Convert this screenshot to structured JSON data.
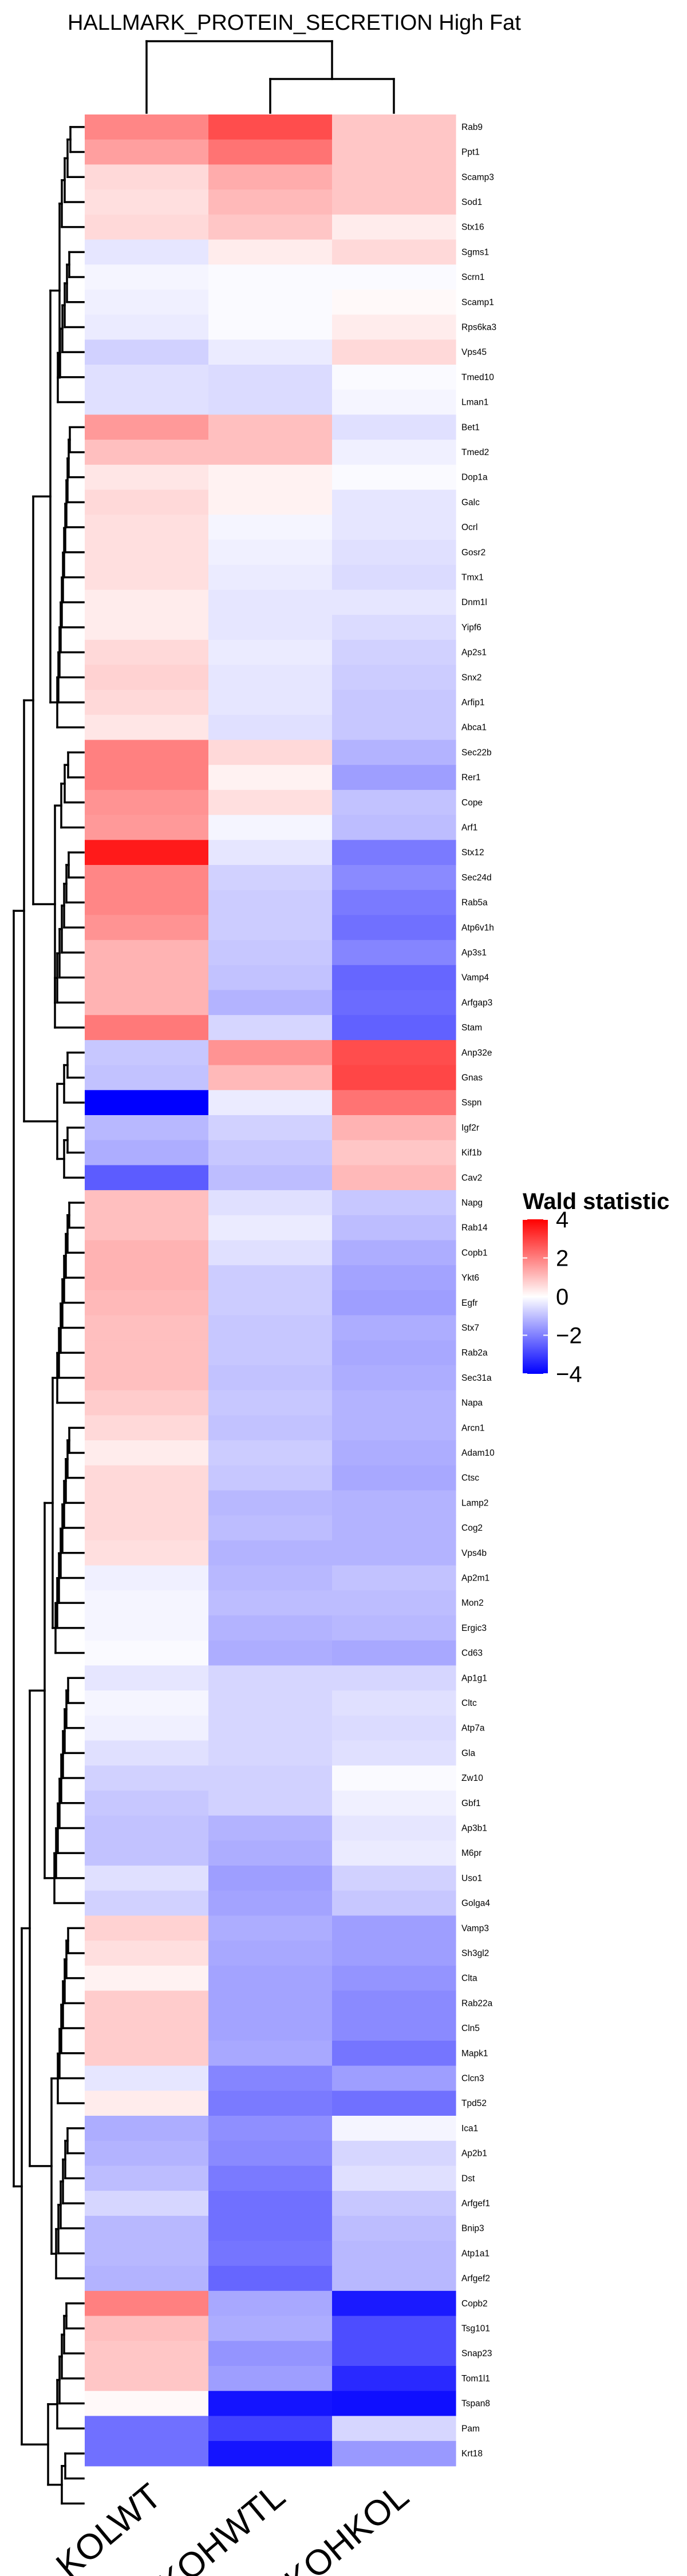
{
  "chart_data": {
    "type": "heatmap",
    "title": "HALLMARK_PROTEIN_SECRETION High Fat",
    "columns": [
      "KOLWT",
      "KOHWTL",
      "KOHKOL"
    ],
    "rows": [
      "Rab9",
      "Ppt1",
      "Scamp3",
      "Sod1",
      "Stx16",
      "Sgms1",
      "Scrn1",
      "Scamp1",
      "Rps6ka3",
      "Vps45",
      "Tmed10",
      "Lman1",
      "Bet1",
      "Tmed2",
      "Dop1a",
      "Galc",
      "Ocrl",
      "Gosr2",
      "Tmx1",
      "Dnm1l",
      "Yipf6",
      "Ap2s1",
      "Snx2",
      "Arfip1",
      "Abca1",
      "Sec22b",
      "Rer1",
      "Cope",
      "Arf1",
      "Stx12",
      "Sec24d",
      "Rab5a",
      "Atp6v1h",
      "Ap3s1",
      "Vamp4",
      "Arfgap3",
      "Stam",
      "Anp32e",
      "Gnas",
      "Sspn",
      "Igf2r",
      "Kif1b",
      "Cav2",
      "Napg",
      "Rab14",
      "Copb1",
      "Ykt6",
      "Egfr",
      "Stx7",
      "Rab2a",
      "Sec31a",
      "Napa",
      "Arcn1",
      "Adam10",
      "Ctsc",
      "Lamp2",
      "Cog2",
      "Vps4b",
      "Ap2m1",
      "Mon2",
      "Ergic3",
      "Cd63",
      "Ap1g1",
      "Cltc",
      "Atp7a",
      "Gla",
      "Zw10",
      "Gbf1",
      "Ap3b1",
      "M6pr",
      "Uso1",
      "Golga4",
      "Vamp3",
      "Sh3gl2",
      "Clta",
      "Rab22a",
      "Cln5",
      "Mapk1",
      "Clcn3",
      "Tpd52",
      "Ica1",
      "Ap2b1",
      "Dst",
      "Arfgef1",
      "Bnip3",
      "Atp1a1",
      "Arfgef2",
      "Copb2",
      "Tsg101",
      "Snap23",
      "Tom1l1",
      "Tspan8",
      "Pam",
      "Krt18"
    ],
    "values": [
      [
        1.9,
        2.8,
        0.9
      ],
      [
        1.5,
        2.2,
        0.9
      ],
      [
        0.6,
        1.3,
        0.9
      ],
      [
        0.5,
        1.1,
        0.9
      ],
      [
        0.6,
        0.9,
        0.3
      ],
      [
        -0.5,
        0.3,
        0.6
      ],
      [
        -0.2,
        -0.1,
        -0.1
      ],
      [
        -0.3,
        -0.1,
        0.1
      ],
      [
        -0.4,
        -0.1,
        0.3
      ],
      [
        -0.9,
        -0.4,
        0.6
      ],
      [
        -0.6,
        -0.7,
        -0.1
      ],
      [
        -0.6,
        -0.7,
        -0.2
      ],
      [
        1.6,
        1.0,
        -0.6
      ],
      [
        1.0,
        1.0,
        -0.3
      ],
      [
        0.4,
        0.2,
        -0.1
      ],
      [
        0.6,
        0.2,
        -0.5
      ],
      [
        0.5,
        -0.2,
        -0.5
      ],
      [
        0.5,
        -0.3,
        -0.6
      ],
      [
        0.5,
        -0.4,
        -0.7
      ],
      [
        0.3,
        -0.5,
        -0.5
      ],
      [
        0.3,
        -0.5,
        -0.7
      ],
      [
        0.6,
        -0.4,
        -0.9
      ],
      [
        0.7,
        -0.5,
        -1.0
      ],
      [
        0.6,
        -0.5,
        -1.1
      ],
      [
        0.4,
        -0.6,
        -1.1
      ],
      [
        2.0,
        0.6,
        -1.5
      ],
      [
        2.0,
        0.2,
        -1.9
      ],
      [
        1.7,
        0.5,
        -1.2
      ],
      [
        1.6,
        -0.2,
        -1.3
      ],
      [
        3.6,
        -0.5,
        -2.6
      ],
      [
        1.9,
        -0.9,
        -2.3
      ],
      [
        1.9,
        -1.0,
        -2.6
      ],
      [
        1.7,
        -1.0,
        -2.8
      ],
      [
        1.2,
        -1.1,
        -2.4
      ],
      [
        1.2,
        -1.2,
        -3.0
      ],
      [
        1.2,
        -1.5,
        -2.9
      ],
      [
        2.1,
        -0.8,
        -3.1
      ],
      [
        -1.1,
        1.7,
        2.8
      ],
      [
        -1.2,
        1.1,
        2.9
      ],
      [
        -5.0,
        -0.4,
        2.2
      ],
      [
        -1.4,
        -0.9,
        1.2
      ],
      [
        -1.6,
        -1.1,
        0.9
      ],
      [
        -3.2,
        -1.3,
        1.1
      ],
      [
        1.0,
        -0.6,
        -1.1
      ],
      [
        1.0,
        -0.4,
        -1.3
      ],
      [
        1.2,
        -0.6,
        -1.6
      ],
      [
        1.2,
        -1.0,
        -1.8
      ],
      [
        1.1,
        -1.0,
        -1.9
      ],
      [
        1.0,
        -1.1,
        -1.6
      ],
      [
        1.0,
        -1.1,
        -1.7
      ],
      [
        1.0,
        -1.2,
        -1.6
      ],
      [
        0.8,
        -1.1,
        -1.5
      ],
      [
        0.6,
        -1.2,
        -1.5
      ],
      [
        0.3,
        -1.0,
        -1.6
      ],
      [
        0.6,
        -1.1,
        -1.7
      ],
      [
        0.6,
        -1.4,
        -1.5
      ],
      [
        0.6,
        -1.3,
        -1.5
      ],
      [
        0.5,
        -1.5,
        -1.5
      ],
      [
        -0.3,
        -1.4,
        -1.2
      ],
      [
        -0.2,
        -1.3,
        -1.3
      ],
      [
        -0.2,
        -1.5,
        -1.4
      ],
      [
        -0.1,
        -1.6,
        -1.7
      ],
      [
        -0.5,
        -0.8,
        -0.8
      ],
      [
        -0.2,
        -0.8,
        -0.6
      ],
      [
        -0.3,
        -0.8,
        -0.7
      ],
      [
        -0.6,
        -0.8,
        -0.6
      ],
      [
        -0.9,
        -0.9,
        -0.1
      ],
      [
        -1.1,
        -0.9,
        -0.3
      ],
      [
        -1.2,
        -1.5,
        -0.5
      ],
      [
        -1.2,
        -1.6,
        -0.4
      ],
      [
        -0.6,
        -1.9,
        -0.9
      ],
      [
        -0.9,
        -1.8,
        -1.1
      ],
      [
        0.7,
        -1.6,
        -1.9
      ],
      [
        0.5,
        -1.7,
        -1.9
      ],
      [
        0.2,
        -1.8,
        -2.1
      ],
      [
        0.8,
        -1.8,
        -2.3
      ],
      [
        0.8,
        -1.8,
        -2.3
      ],
      [
        0.8,
        -1.7,
        -2.7
      ],
      [
        -0.5,
        -2.4,
        -1.9
      ],
      [
        0.3,
        -2.6,
        -2.8
      ],
      [
        -1.6,
        -2.2,
        -0.2
      ],
      [
        -1.5,
        -2.3,
        -0.8
      ],
      [
        -1.3,
        -2.6,
        -0.6
      ],
      [
        -0.8,
        -2.8,
        -1.1
      ],
      [
        -1.4,
        -2.8,
        -1.3
      ],
      [
        -1.4,
        -2.7,
        -1.4
      ],
      [
        -1.5,
        -3.0,
        -1.4
      ],
      [
        2.0,
        -1.7,
        -4.5
      ],
      [
        1.0,
        -1.6,
        -3.5
      ],
      [
        0.9,
        -2.1,
        -3.5
      ],
      [
        0.9,
        -1.9,
        -4.2
      ],
      [
        0.1,
        -4.6,
        -4.7
      ],
      [
        -2.8,
        -3.7,
        -0.8
      ],
      [
        -2.8,
        -4.6,
        -2.0
      ]
    ],
    "value_range": [
      -5,
      4
    ],
    "legend": {
      "title": "Wald statistic",
      "ticks": [
        4,
        2,
        0,
        -2,
        -4
      ],
      "colors": {
        "high": "#ff0000",
        "mid": "#ffffff",
        "low": "#0000ff"
      },
      "placement": "right"
    }
  }
}
